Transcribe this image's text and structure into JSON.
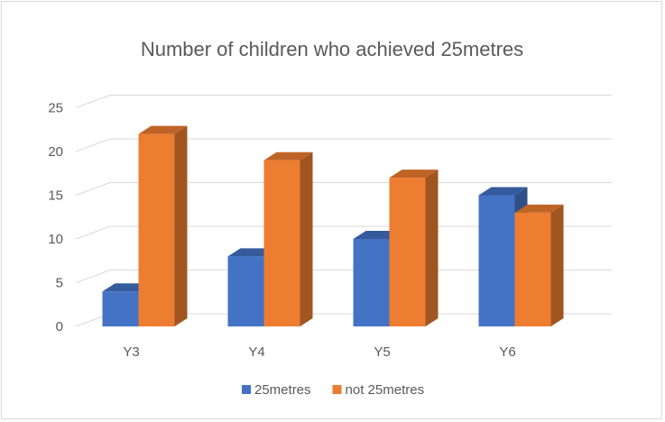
{
  "chart_data": {
    "type": "bar",
    "title": "Number of children who achieved 25metres",
    "xlabel": "",
    "ylabel": "",
    "categories": [
      "Y3",
      "Y4",
      "Y5",
      "Y6"
    ],
    "series": [
      {
        "name": "25metres",
        "values": [
          4,
          8,
          10,
          15
        ],
        "color": "#4472C4"
      },
      {
        "name": "not 25metres",
        "values": [
          22,
          19,
          17,
          13
        ],
        "color": "#ED7D31"
      }
    ],
    "ylim": [
      0,
      25
    ],
    "yticks": [
      0,
      5,
      10,
      15,
      20,
      25
    ],
    "grid": true,
    "legend_position": "bottom",
    "style": "3d-clustered-column"
  }
}
